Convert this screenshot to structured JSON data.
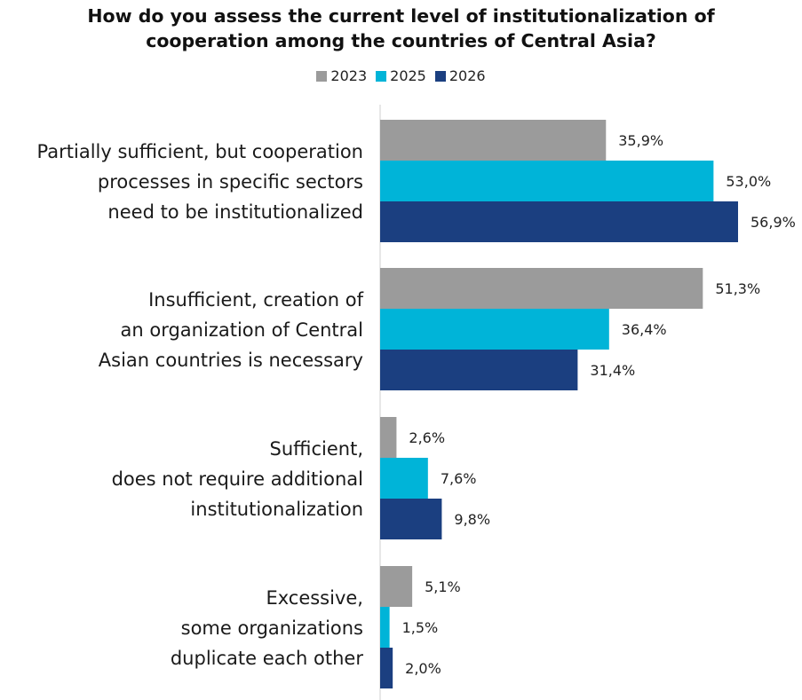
{
  "chart_data": {
    "type": "bar",
    "orientation": "horizontal",
    "title": [
      "How do you assess the current level of institutionalization of",
      "cooperation among the countries of Central Asia?"
    ],
    "categories": [
      [
        "Partially sufficient, but cooperation",
        "processes in specific sectors",
        "need to be institutionalized"
      ],
      [
        "Insufficient, creation of",
        "an organization of Central",
        "Asian countries is necessary"
      ],
      [
        "Sufficient,",
        "does not require additional",
        "institutionalization"
      ],
      [
        "Excessive,",
        "some organizations",
        "duplicate each other"
      ]
    ],
    "series": [
      {
        "name": "2023",
        "color": "#9b9b9b",
        "values": [
          35.9,
          51.3,
          2.6,
          5.1
        ],
        "labels": [
          "35,9%",
          "51,3%",
          "2,6%",
          "5,1%"
        ]
      },
      {
        "name": "2025",
        "color": "#00b4d8",
        "values": [
          53.0,
          36.4,
          7.6,
          1.5
        ],
        "labels": [
          "53,0%",
          "36,4%",
          "7,6%",
          "1,5%"
        ]
      },
      {
        "name": "2026",
        "color": "#1b3f80",
        "values": [
          56.9,
          31.4,
          9.8,
          2.0
        ],
        "labels": [
          "56,9%",
          "31,4%",
          "9,8%",
          "2,0%"
        ]
      }
    ],
    "xlim": [
      0,
      65
    ],
    "legend_position": "top-center",
    "grid": false,
    "units": "%"
  }
}
